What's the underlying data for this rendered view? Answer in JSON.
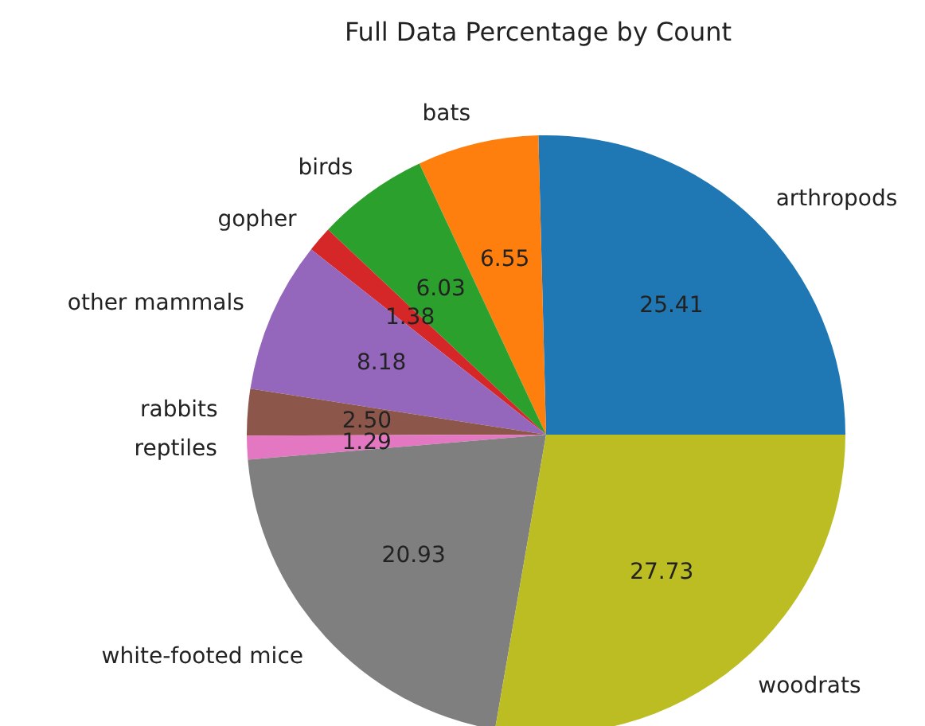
{
  "chart_data": {
    "type": "pie",
    "title": "Full Data Percentage by Count",
    "categories": [
      "arthropods",
      "bats",
      "birds",
      "gopher",
      "other mammals",
      "rabbits",
      "reptiles",
      "white-footed mice",
      "woodrats"
    ],
    "values": [
      25.41,
      6.55,
      6.03,
      1.38,
      8.18,
      2.5,
      1.29,
      20.93,
      27.73
    ],
    "value_labels": [
      "25.41",
      "6.55",
      "6.03",
      "1.38",
      "8.18",
      "2.50",
      "1.29",
      "20.93",
      "27.73"
    ],
    "colors": [
      "#1f77b4",
      "#ff7f0e",
      "#2ca02c",
      "#d62728",
      "#9467bd",
      "#8c564b",
      "#e377c2",
      "#7f7f7f",
      "#bcbd22"
    ],
    "legend": false
  }
}
